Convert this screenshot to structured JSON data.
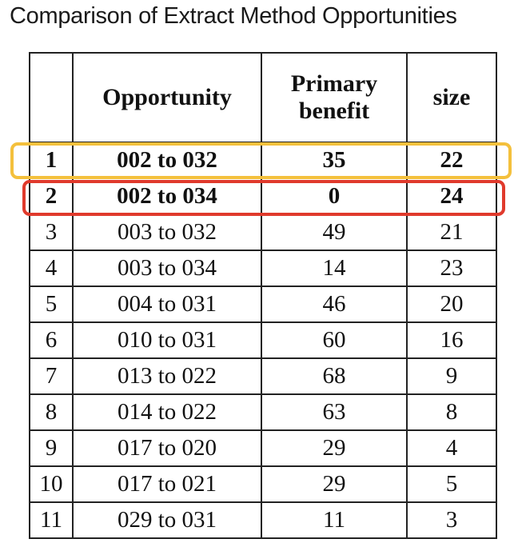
{
  "title": "Comparison of Extract Method Opportunities",
  "headers": {
    "index": "",
    "opportunity": "Opportunity",
    "primary_benefit_line1": "Primary",
    "primary_benefit_line2": "benefit",
    "size": "size"
  },
  "rows": [
    {
      "index": "1",
      "opportunity": "002 to 032",
      "benefit": "35",
      "size": "22"
    },
    {
      "index": "2",
      "opportunity": "002 to 034",
      "benefit": "0",
      "size": "24"
    },
    {
      "index": "3",
      "opportunity": "003 to 032",
      "benefit": "49",
      "size": "21"
    },
    {
      "index": "4",
      "opportunity": "003 to 034",
      "benefit": "14",
      "size": "23"
    },
    {
      "index": "5",
      "opportunity": "004 to 031",
      "benefit": "46",
      "size": "20"
    },
    {
      "index": "6",
      "opportunity": "010 to 031",
      "benefit": "60",
      "size": "16"
    },
    {
      "index": "7",
      "opportunity": "013 to 022",
      "benefit": "68",
      "size": "9"
    },
    {
      "index": "8",
      "opportunity": "014 to 022",
      "benefit": "63",
      "size": "8"
    },
    {
      "index": "9",
      "opportunity": "017 to 020",
      "benefit": "29",
      "size": "4"
    },
    {
      "index": "10",
      "opportunity": "017 to 021",
      "benefit": "29",
      "size": "5"
    },
    {
      "index": "11",
      "opportunity": "029 to 031",
      "benefit": "11",
      "size": "3"
    }
  ],
  "highlights": {
    "row_1_color": "#f4c03c",
    "row_2_color": "#e03a2c"
  }
}
